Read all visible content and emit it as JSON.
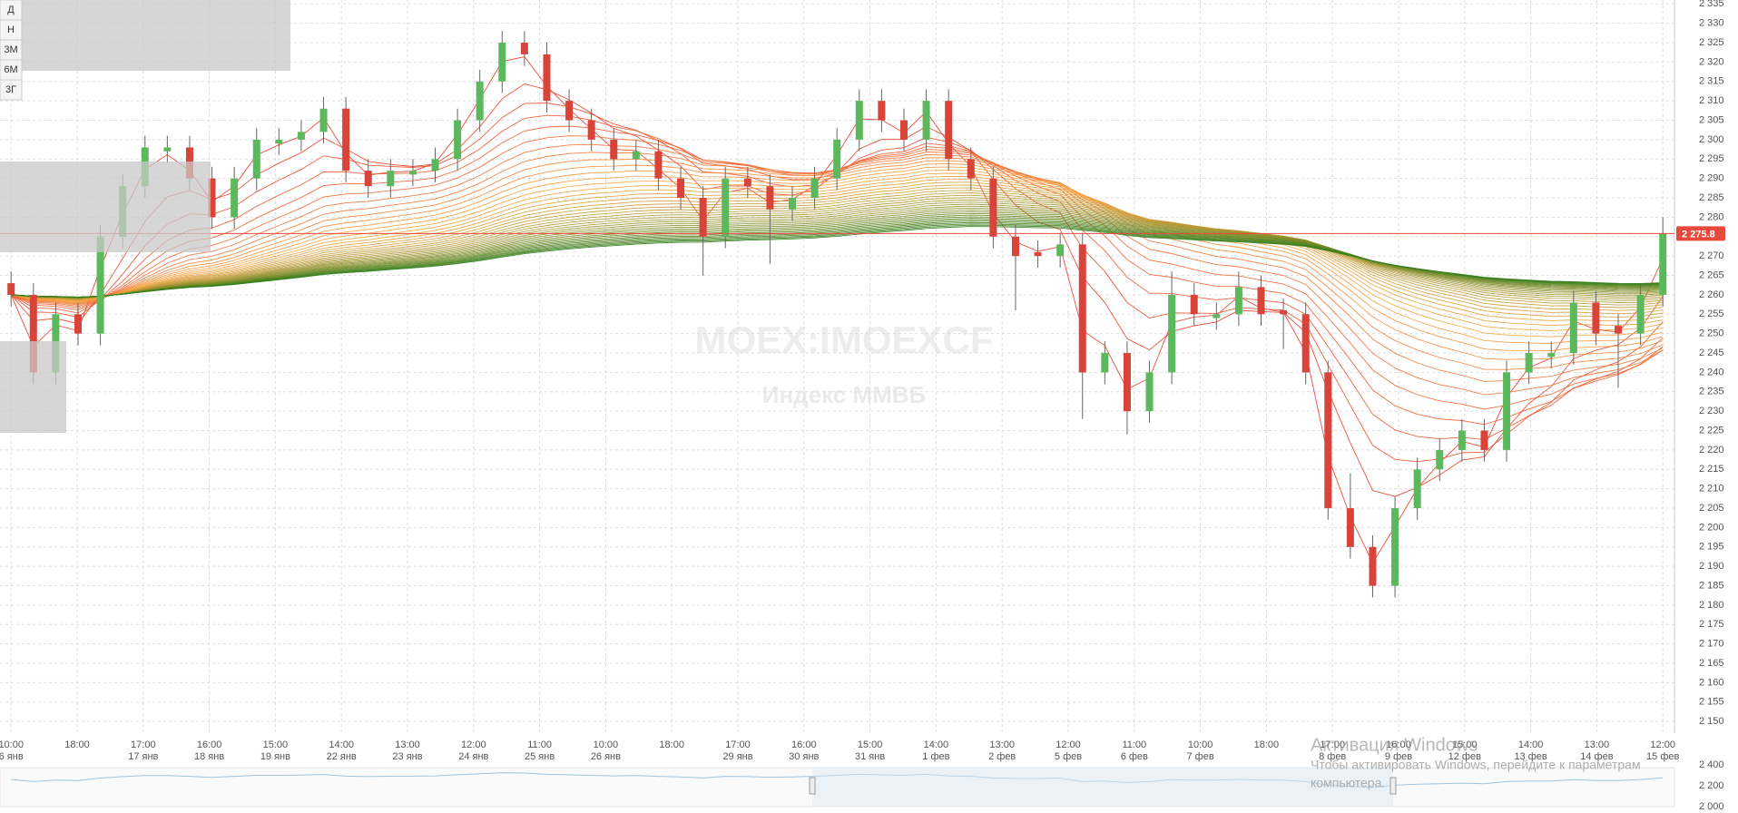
{
  "chart_data": {
    "type": "candlestick",
    "buttons": [
      "Д",
      "Н",
      "3М",
      "6М",
      "3Г"
    ],
    "watermark": "MOEX:IMOEXCF",
    "watermark_subtitle": "Индекс ММВБ",
    "x_axis_labels": [
      [
        "10:00",
        "6 янв"
      ],
      [
        "18:00",
        null
      ],
      [
        "17:00",
        "17 янв"
      ],
      [
        "16:00",
        "18 янв"
      ],
      [
        "15:00",
        "19 янв"
      ],
      [
        "14:00",
        "22 янв"
      ],
      [
        "13:00",
        "23 янв"
      ],
      [
        "12:00",
        "24 янв"
      ],
      [
        "11:00",
        "25 янв"
      ],
      [
        "10:00",
        "26 янв"
      ],
      [
        "18:00",
        null
      ],
      [
        "17:00",
        "29 янв"
      ],
      [
        "16:00",
        "30 янв"
      ],
      [
        "15:00",
        "31 янв"
      ],
      [
        "14:00",
        "1 фев"
      ],
      [
        "13:00",
        "2 фев"
      ],
      [
        "12:00",
        "5 фев"
      ],
      [
        "11:00",
        "6 фев"
      ],
      [
        "10:00",
        "7 фев"
      ],
      [
        "18:00",
        null
      ],
      [
        "17:00",
        "8 фев"
      ],
      [
        "16:00",
        "9 фев"
      ],
      [
        "15:00",
        "12 фев"
      ],
      [
        "14:00",
        "13 фев"
      ],
      [
        "13:00",
        "14 фев"
      ],
      [
        "12:00",
        "15 фев"
      ]
    ],
    "ohlc": [
      [
        2263,
        2266,
        2257,
        2260
      ],
      [
        2260,
        2263,
        2237,
        2240
      ],
      [
        2240,
        2258,
        2237,
        2255
      ],
      [
        2255,
        2258,
        2247,
        2250
      ],
      [
        2250,
        2278,
        2247,
        2275
      ],
      [
        2275,
        2291,
        2272,
        2288
      ],
      [
        2288,
        2301,
        2285,
        2298
      ],
      [
        2297,
        2301,
        2294,
        2298
      ],
      [
        2298,
        2301,
        2287,
        2290
      ],
      [
        2290,
        2293,
        2277,
        2280
      ],
      [
        2280,
        2293,
        2277,
        2290
      ],
      [
        2290,
        2303,
        2287,
        2300
      ],
      [
        2299,
        2303,
        2296,
        2300
      ],
      [
        2300,
        2305,
        2297,
        2302
      ],
      [
        2302,
        2311,
        2299,
        2308
      ],
      [
        2308,
        2311,
        2289,
        2292
      ],
      [
        2292,
        2295,
        2285,
        2288
      ],
      [
        2288,
        2295,
        2285,
        2292
      ],
      [
        2291,
        2295,
        2288,
        2292
      ],
      [
        2292,
        2298,
        2289,
        2295
      ],
      [
        2295,
        2308,
        2292,
        2305
      ],
      [
        2305,
        2318,
        2302,
        2315
      ],
      [
        2315,
        2328,
        2312,
        2325
      ],
      [
        2325,
        2328,
        2319,
        2322
      ],
      [
        2322,
        2325,
        2307,
        2310
      ],
      [
        2310,
        2313,
        2302,
        2305
      ],
      [
        2305,
        2308,
        2297,
        2300
      ],
      [
        2300,
        2303,
        2292,
        2295
      ],
      [
        2295,
        2300,
        2292,
        2297
      ],
      [
        2297,
        2300,
        2287,
        2290
      ],
      [
        2290,
        2293,
        2282,
        2285
      ],
      [
        2285,
        2288,
        2265,
        2275
      ],
      [
        2275,
        2293,
        2272,
        2290
      ],
      [
        2290,
        2293,
        2285,
        2288
      ],
      [
        2288,
        2291,
        2268,
        2282
      ],
      [
        2282,
        2288,
        2279,
        2285
      ],
      [
        2285,
        2293,
        2282,
        2290
      ],
      [
        2290,
        2303,
        2287,
        2300
      ],
      [
        2300,
        2313,
        2297,
        2310
      ],
      [
        2310,
        2313,
        2302,
        2305
      ],
      [
        2305,
        2308,
        2297,
        2300
      ],
      [
        2300,
        2313,
        2297,
        2310
      ],
      [
        2310,
        2313,
        2292,
        2295
      ],
      [
        2295,
        2298,
        2287,
        2290
      ],
      [
        2290,
        2293,
        2272,
        2275
      ],
      [
        2275,
        2278,
        2256,
        2270
      ],
      [
        2271,
        2274,
        2267,
        2270
      ],
      [
        2270,
        2276,
        2267,
        2273
      ],
      [
        2273,
        2276,
        2228,
        2240
      ],
      [
        2240,
        2248,
        2237,
        2245
      ],
      [
        2245,
        2248,
        2224,
        2230
      ],
      [
        2230,
        2243,
        2227,
        2240
      ],
      [
        2240,
        2266,
        2237,
        2260
      ],
      [
        2260,
        2263,
        2252,
        2255
      ],
      [
        2254,
        2258,
        2251,
        2255
      ],
      [
        2255,
        2266,
        2252,
        2262
      ],
      [
        2262,
        2265,
        2252,
        2255
      ],
      [
        2256,
        2259,
        2246,
        2255
      ],
      [
        2255,
        2258,
        2237,
        2240
      ],
      [
        2240,
        2243,
        2202,
        2205
      ],
      [
        2205,
        2214,
        2192,
        2195
      ],
      [
        2195,
        2198,
        2182,
        2185
      ],
      [
        2185,
        2208,
        2182,
        2205
      ],
      [
        2205,
        2218,
        2202,
        2215
      ],
      [
        2215,
        2223,
        2212,
        2220
      ],
      [
        2220,
        2228,
        2217,
        2225
      ],
      [
        2225,
        2228,
        2217,
        2220
      ],
      [
        2220,
        2243,
        2217,
        2240
      ],
      [
        2240,
        2248,
        2237,
        2245
      ],
      [
        2244,
        2248,
        2241,
        2245
      ],
      [
        2245,
        2261,
        2242,
        2258
      ],
      [
        2258,
        2261,
        2247,
        2250
      ],
      [
        2252,
        2255,
        2236,
        2250
      ],
      [
        2250,
        2263,
        2247,
        2260
      ],
      [
        2260,
        2280,
        2257,
        2275.8
      ]
    ],
    "up_color": "#5cb85c",
    "down_color": "#d9443a",
    "last_price_label": "2 275.8",
    "last_price_color": "#e8493c",
    "ylim": [
      2147,
      2336
    ],
    "yticks": [
      {
        "value": 2150,
        "label": "2 150"
      },
      {
        "value": 2155,
        "label": "2 155"
      },
      {
        "value": 2160,
        "label": "2 160"
      },
      {
        "value": 2165,
        "label": "2 165"
      },
      {
        "value": 2170,
        "label": "2 170"
      },
      {
        "value": 2175,
        "label": "2 175"
      },
      {
        "value": 2180,
        "label": "2 180"
      },
      {
        "value": 2185,
        "label": "2 185"
      },
      {
        "value": 2190,
        "label": "2 190"
      },
      {
        "value": 2195,
        "label": "2 195"
      },
      {
        "value": 2200,
        "label": "2 200"
      },
      {
        "value": 2205,
        "label": "2 205"
      },
      {
        "value": 2210,
        "label": "2 210"
      },
      {
        "value": 2215,
        "label": "2 215"
      },
      {
        "value": 2220,
        "label": "2 220"
      },
      {
        "value": 2225,
        "label": "2 225"
      },
      {
        "value": 2230,
        "label": "2 230"
      },
      {
        "value": 2235,
        "label": "2 235"
      },
      {
        "value": 2240,
        "label": "2 240"
      },
      {
        "value": 2245,
        "label": "2 245"
      },
      {
        "value": 2250,
        "label": "2 250"
      },
      {
        "value": 2255,
        "label": "2 255"
      },
      {
        "value": 2260,
        "label": "2 260"
      },
      {
        "value": 2265,
        "label": "2 265"
      },
      {
        "value": 2270,
        "label": "2 270"
      },
      {
        "value": 2275,
        "label": "2 275"
      },
      {
        "value": 2280,
        "label": "2 280"
      },
      {
        "value": 2285,
        "label": "2 285"
      },
      {
        "value": 2290,
        "label": "2 290"
      },
      {
        "value": 2295,
        "label": "2 295"
      },
      {
        "value": 2300,
        "label": "2 300"
      },
      {
        "value": 2305,
        "label": "2 305"
      },
      {
        "value": 2310,
        "label": "2 310"
      },
      {
        "value": 2315,
        "label": "2 315"
      },
      {
        "value": 2320,
        "label": "2 320"
      },
      {
        "value": 2325,
        "label": "2 325"
      },
      {
        "value": 2330,
        "label": "2 330"
      },
      {
        "value": 2335,
        "label": "2 335"
      }
    ],
    "grid": true,
    "navigator_ylim": [
      2000,
      2400
    ],
    "navigator_yticks": [
      {
        "value": 2400,
        "label": "2 400"
      },
      {
        "value": 2200,
        "label": "2 200"
      },
      {
        "value": 2000,
        "label": "2 000"
      }
    ]
  },
  "overlay": {
    "title": "Активация Windows",
    "text_lines": [
      "Чтобы активировать Windows, перейдите к параметрам",
      "компьютера."
    ]
  }
}
